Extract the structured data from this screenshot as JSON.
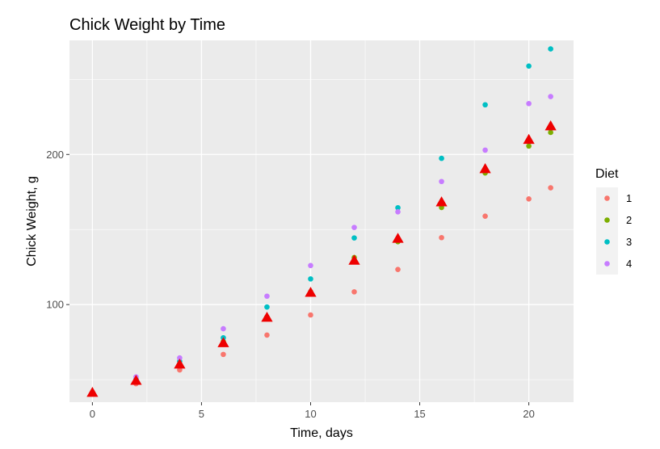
{
  "chart_data": {
    "type": "scatter",
    "title": "Chick Weight by Time",
    "xlabel": "Time, days",
    "ylabel": "Chick Weight, g",
    "xlim": [
      -1.05,
      22.05
    ],
    "ylim": [
      35,
      276
    ],
    "x_ticks": [
      0,
      5,
      10,
      15,
      20
    ],
    "y_ticks": [
      100,
      200
    ],
    "grid": true,
    "legend": {
      "title": "Diet",
      "placement": "right"
    },
    "series": [
      {
        "name": "1",
        "color": "#F8766D",
        "points": [
          [
            0,
            41.4
          ],
          [
            2,
            47.3
          ],
          [
            4,
            56.5
          ],
          [
            6,
            66.8
          ],
          [
            8,
            79.7
          ],
          [
            10,
            93.1
          ],
          [
            12,
            108.5
          ],
          [
            14,
            123.4
          ],
          [
            16,
            144.6
          ],
          [
            18,
            158.9
          ],
          [
            20,
            170.4
          ],
          [
            21,
            177.8
          ]
        ]
      },
      {
        "name": "2",
        "color": "#7CAE00",
        "points": [
          [
            0,
            40.7
          ],
          [
            2,
            49.4
          ],
          [
            4,
            59.8
          ],
          [
            6,
            75.4
          ],
          [
            8,
            91.7
          ],
          [
            10,
            108.5
          ],
          [
            12,
            131.3
          ],
          [
            14,
            141.9
          ],
          [
            16,
            164.7
          ],
          [
            18,
            187.7
          ],
          [
            20,
            205.6
          ],
          [
            21,
            214.7
          ]
        ]
      },
      {
        "name": "3",
        "color": "#00BFC4",
        "points": [
          [
            0,
            40.8
          ],
          [
            2,
            50.4
          ],
          [
            4,
            62.2
          ],
          [
            6,
            77.9
          ],
          [
            8,
            98.4
          ],
          [
            10,
            117.1
          ],
          [
            12,
            144.4
          ],
          [
            14,
            164.5
          ],
          [
            16,
            197.4
          ],
          [
            18,
            233.1
          ],
          [
            20,
            258.9
          ],
          [
            21,
            270.3
          ]
        ]
      },
      {
        "name": "4",
        "color": "#C77CFF",
        "points": [
          [
            0,
            41.0
          ],
          [
            2,
            51.8
          ],
          [
            4,
            64.5
          ],
          [
            6,
            83.9
          ],
          [
            8,
            105.6
          ],
          [
            10,
            126.0
          ],
          [
            12,
            151.4
          ],
          [
            14,
            161.8
          ],
          [
            16,
            182.0
          ],
          [
            18,
            202.9
          ],
          [
            20,
            233.9
          ],
          [
            21,
            238.6
          ]
        ]
      }
    ],
    "overall_mean": {
      "color": "#EE0000",
      "marker": "triangle",
      "points": [
        [
          0,
          41.2
        ],
        [
          2,
          49.2
        ],
        [
          4,
          60.0
        ],
        [
          6,
          74.3
        ],
        [
          8,
          91.2
        ],
        [
          10,
          107.8
        ],
        [
          12,
          129.2
        ],
        [
          14,
          143.8
        ],
        [
          16,
          168.1
        ],
        [
          18,
          190.2
        ],
        [
          20,
          209.7
        ],
        [
          21,
          218.7
        ]
      ]
    }
  }
}
